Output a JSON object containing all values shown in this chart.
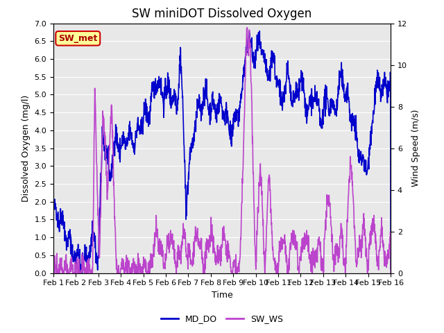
{
  "title": "SW miniDOT Dissolved Oxygen",
  "xlabel": "Time",
  "ylabel_left": "Dissolved Oxygen (mg/l)",
  "ylabel_right": "Wind Speed (m/s)",
  "ylim_left": [
    0.0,
    7.0
  ],
  "ylim_right": [
    0,
    12
  ],
  "yticks_left": [
    0.0,
    0.5,
    1.0,
    1.5,
    2.0,
    2.5,
    3.0,
    3.5,
    4.0,
    4.5,
    5.0,
    5.5,
    6.0,
    6.5,
    7.0
  ],
  "yticks_right": [
    0,
    2,
    4,
    6,
    8,
    10,
    12
  ],
  "xtick_labels": [
    "Feb 1",
    "Feb 2",
    "Feb 3",
    "Feb 4",
    "Feb 5",
    "Feb 6",
    "Feb 7",
    "Feb 8",
    "Feb 9",
    "Feb 10",
    "Feb 11",
    "Feb 12",
    "Feb 13",
    "Feb 14",
    "Feb 15",
    "Feb 16"
  ],
  "color_do": "#0000cc",
  "color_ws": "#bb44cc",
  "color_bg": "#e8e8e8",
  "legend_label_do": "MD_DO",
  "legend_label_ws": "SW_WS",
  "annotation_text": "SW_met",
  "annotation_bg": "#ffff99",
  "annotation_border": "#cc0000",
  "annotation_text_color": "#aa0000",
  "title_fontsize": 12,
  "label_fontsize": 9,
  "tick_fontsize": 8,
  "legend_fontsize": 9,
  "linewidth_do": 1.2,
  "linewidth_ws": 1.2
}
